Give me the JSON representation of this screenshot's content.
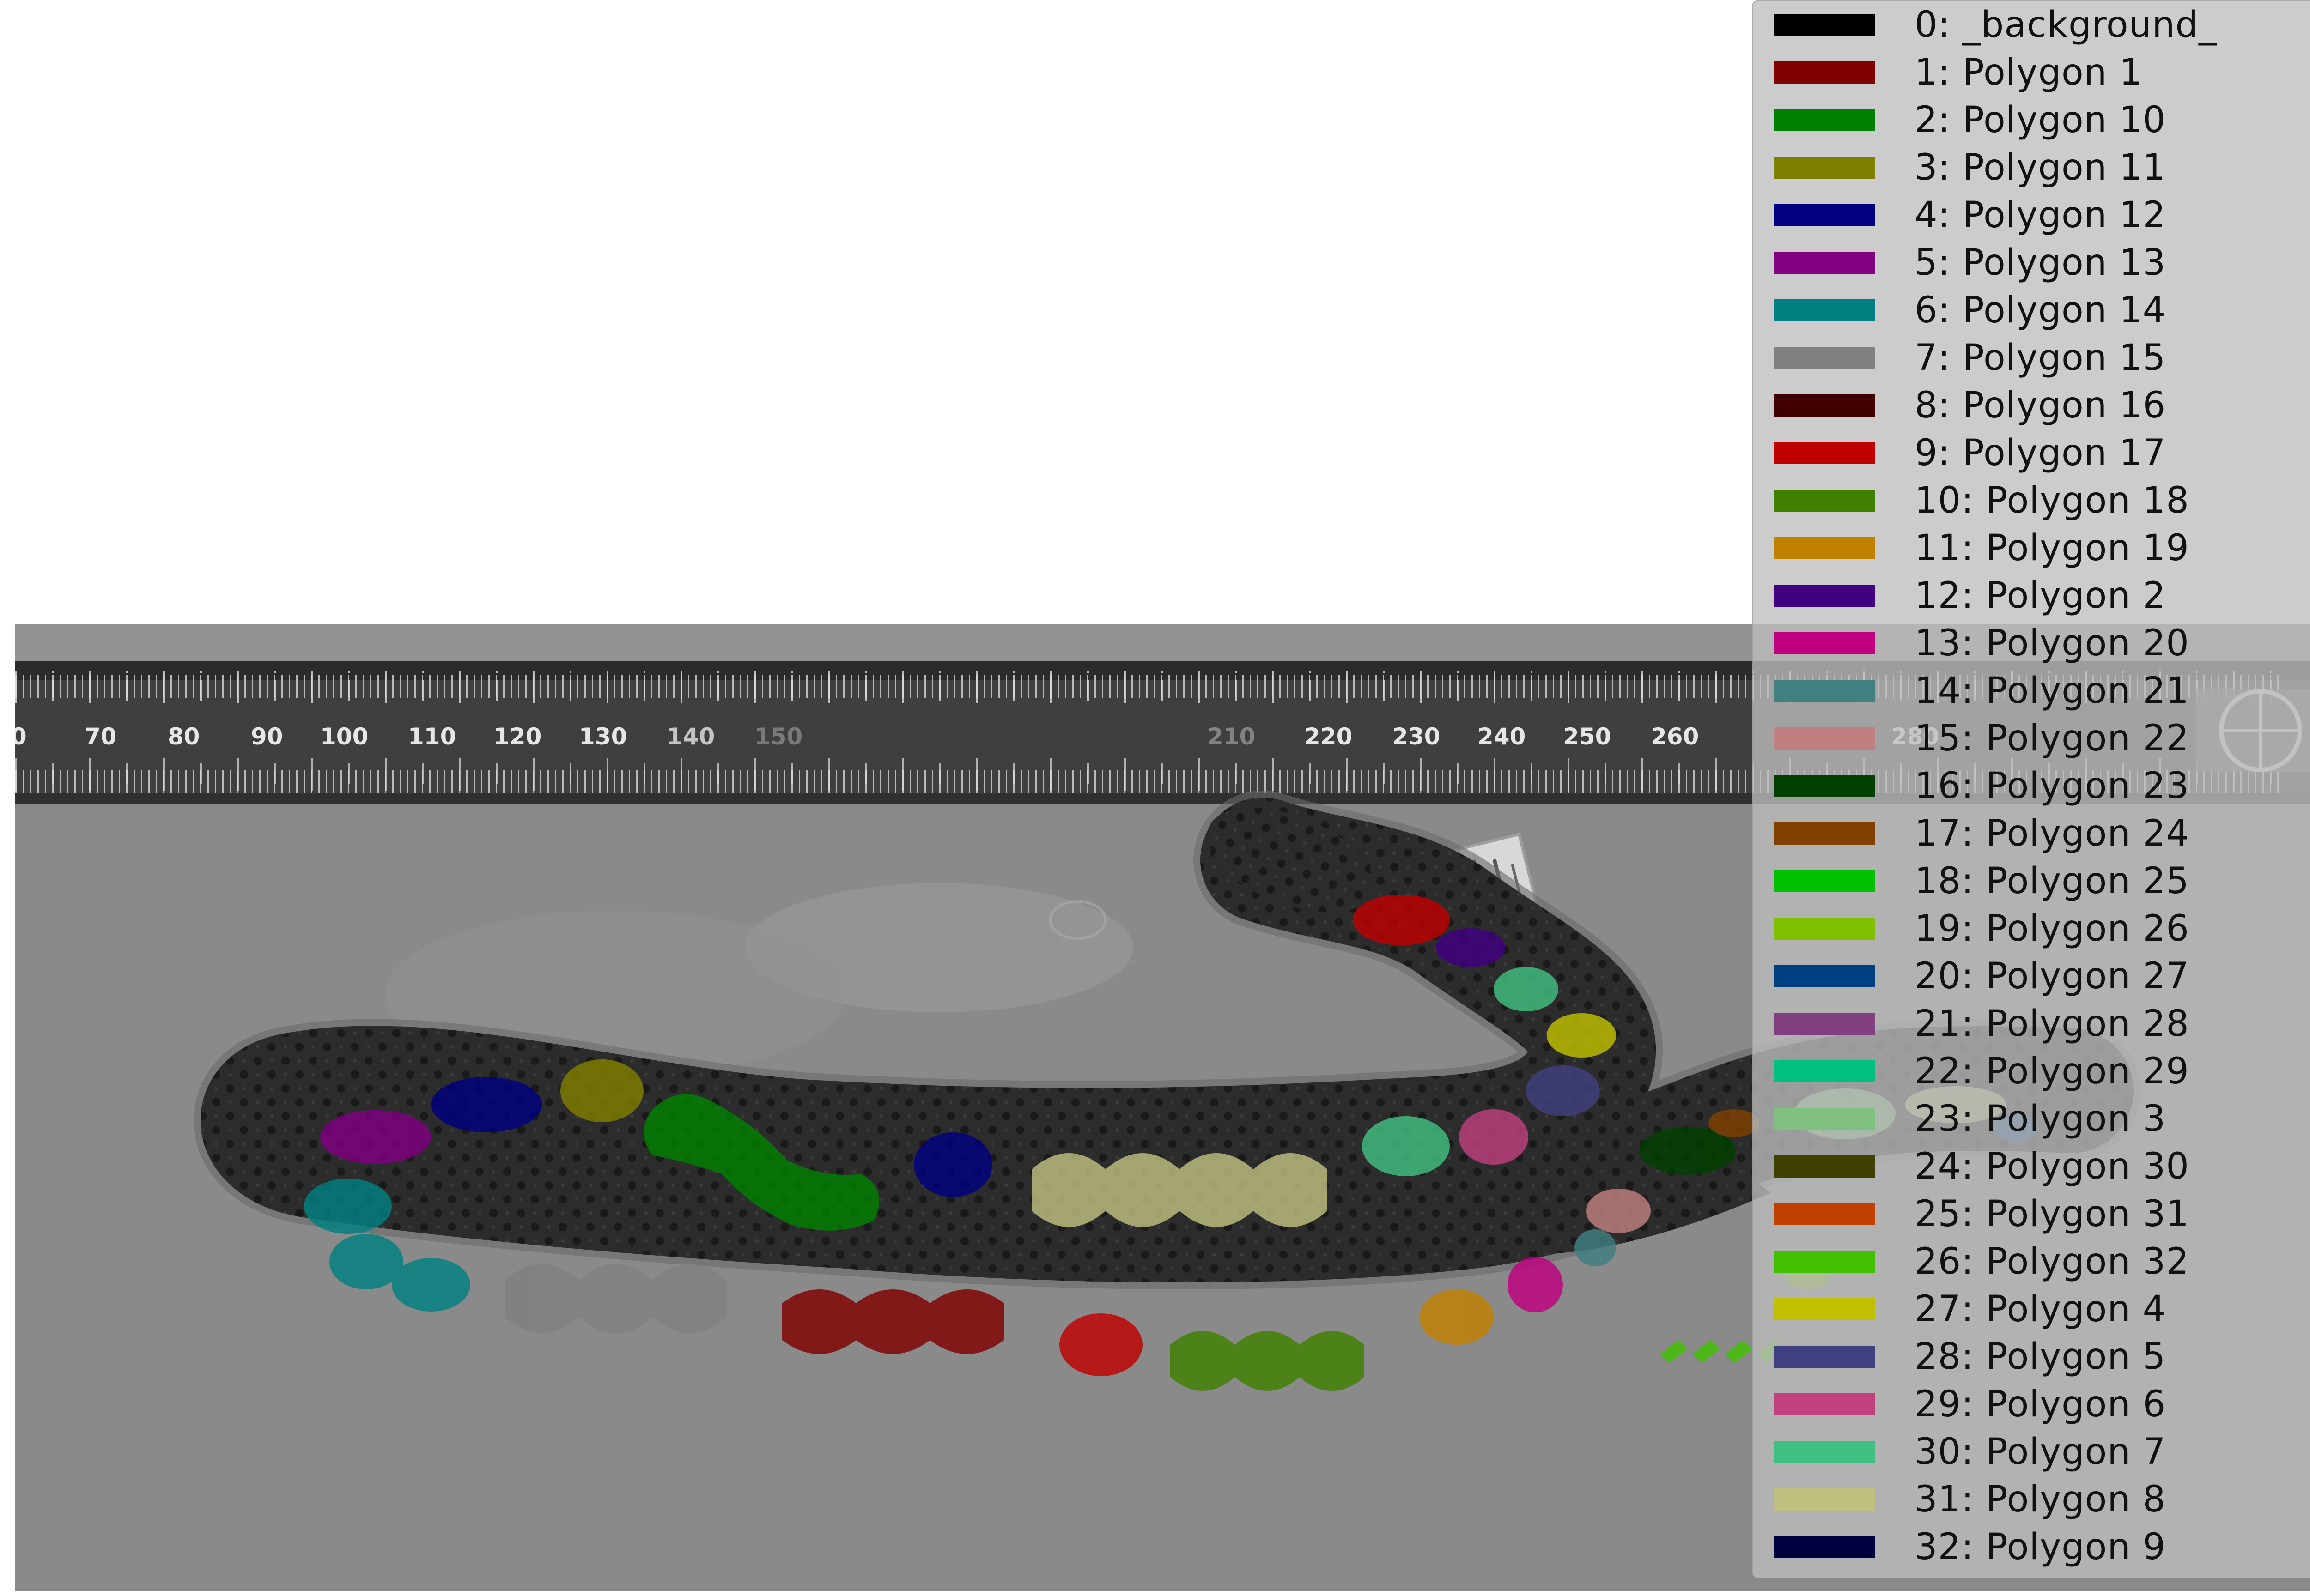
{
  "photo": {
    "ruler_numbers": [
      "0",
      "70",
      "80",
      "90",
      "100",
      "110",
      "120",
      "130",
      "140",
      "150",
      "210",
      "220",
      "230",
      "240",
      "250",
      "260",
      "280"
    ]
  },
  "legend": {
    "items": [
      {
        "label": "0: _background_",
        "color": "#000000"
      },
      {
        "label": "1: Polygon 1",
        "color": "#800000"
      },
      {
        "label": "2: Polygon 10",
        "color": "#008000"
      },
      {
        "label": "3: Polygon 11",
        "color": "#808000"
      },
      {
        "label": "4: Polygon 12",
        "color": "#000080"
      },
      {
        "label": "5: Polygon 13",
        "color": "#800080"
      },
      {
        "label": "6: Polygon 14",
        "color": "#008080"
      },
      {
        "label": "7: Polygon 15",
        "color": "#808080"
      },
      {
        "label": "8: Polygon 16",
        "color": "#400000"
      },
      {
        "label": "9: Polygon 17",
        "color": "#c00000"
      },
      {
        "label": "10: Polygon 18",
        "color": "#408000"
      },
      {
        "label": "11: Polygon 19",
        "color": "#c08000"
      },
      {
        "label": "12: Polygon 2",
        "color": "#400080"
      },
      {
        "label": "13: Polygon 20",
        "color": "#c00080"
      },
      {
        "label": "14: Polygon 21",
        "color": "#408080"
      },
      {
        "label": "15: Polygon 22",
        "color": "#c08080"
      },
      {
        "label": "16: Polygon 23",
        "color": "#004000"
      },
      {
        "label": "17: Polygon 24",
        "color": "#804000"
      },
      {
        "label": "18: Polygon 25",
        "color": "#00c000"
      },
      {
        "label": "19: Polygon 26",
        "color": "#80c000"
      },
      {
        "label": "20: Polygon 27",
        "color": "#004080"
      },
      {
        "label": "21: Polygon 28",
        "color": "#804080"
      },
      {
        "label": "22: Polygon 29",
        "color": "#00c080"
      },
      {
        "label": "23: Polygon 3",
        "color": "#80c080"
      },
      {
        "label": "24: Polygon 30",
        "color": "#404000"
      },
      {
        "label": "25: Polygon 31",
        "color": "#c04000"
      },
      {
        "label": "26: Polygon 32",
        "color": "#40c000"
      },
      {
        "label": "27: Polygon 4",
        "color": "#c0c000"
      },
      {
        "label": "28: Polygon 5",
        "color": "#404080"
      },
      {
        "label": "29: Polygon 6",
        "color": "#c04080"
      },
      {
        "label": "30: Polygon 7",
        "color": "#40c080"
      },
      {
        "label": "31: Polygon 8",
        "color": "#c0c080"
      },
      {
        "label": "32: Polygon 9",
        "color": "#000040"
      }
    ]
  }
}
